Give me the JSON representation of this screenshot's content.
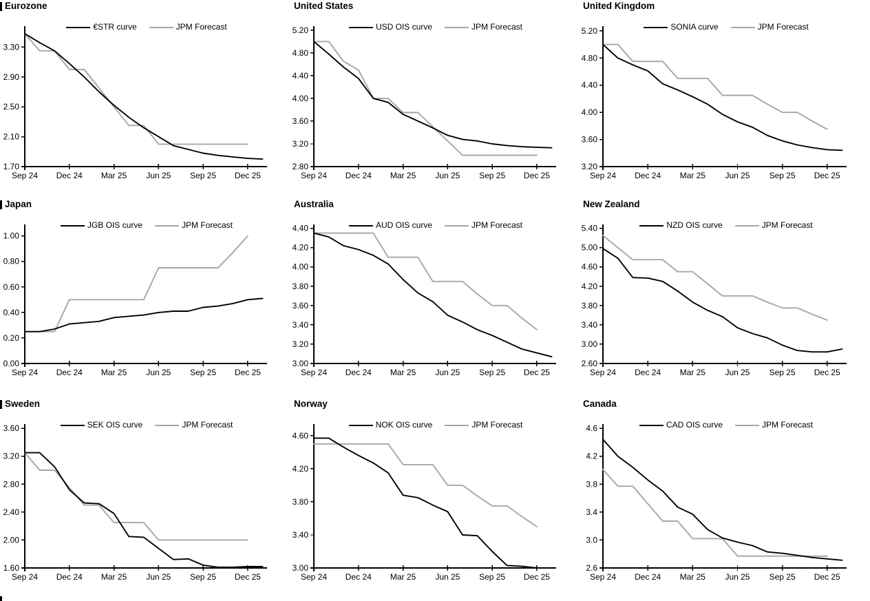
{
  "page": {
    "background": "#ffffff",
    "text_color": "#000000"
  },
  "colors": {
    "line_main": "#000000",
    "line_forecast": "#a6a6a6"
  },
  "section_markers": {
    "color": "#000000",
    "count": 4,
    "description": "short vertical bars at left edge beside row titles and page bottom"
  },
  "x_axis": {
    "tick_labels": [
      "Sep 24",
      "Dec 24",
      "Mar 25",
      "Jun 25",
      "Sep 25",
      "Dec 25"
    ],
    "unit": "monthly points, index 0 = Sep 2024"
  },
  "chart_data": [
    {
      "type": "line",
      "title": "Eurozone",
      "grid": false,
      "legend_position": "top",
      "x_tick_labels": [
        "Sep 24",
        "Dec 24",
        "Mar 25",
        "Jun 25",
        "Sep 25",
        "Dec 25"
      ],
      "x_tick_months": [
        0,
        3,
        6,
        9,
        12,
        15
      ],
      "y_min": 1.7,
      "y_max": 3.58,
      "y_ticks": [
        "3.30",
        "2.90",
        "2.50",
        "2.10",
        "1.70"
      ],
      "series": [
        {
          "name": "€STR curve",
          "color": "#000000",
          "values": [
            3.48,
            3.36,
            3.25,
            3.08,
            2.9,
            2.7,
            2.52,
            2.36,
            2.22,
            2.1,
            1.98,
            1.93,
            1.88,
            1.85,
            1.83,
            1.81,
            1.8
          ]
        },
        {
          "name": "JPM Forecast",
          "color": "#a6a6a6",
          "values": [
            3.48,
            3.25,
            3.25,
            3.0,
            3.0,
            2.75,
            2.5,
            2.25,
            2.25,
            2.0,
            2.0,
            2.0,
            2.0,
            2.0,
            2.0,
            2.0
          ]
        }
      ]
    },
    {
      "type": "line",
      "title": "United States",
      "grid": false,
      "legend_position": "top",
      "x_tick_labels": [
        "Sep 24",
        "Dec 24",
        "Mar 25",
        "Jun 25",
        "Sep 25",
        "Dec 25"
      ],
      "x_tick_months": [
        0,
        3,
        6,
        9,
        12,
        15
      ],
      "y_min": 2.8,
      "y_max": 5.27,
      "y_ticks": [
        "5.20",
        "4.80",
        "4.40",
        "4.00",
        "3.60",
        "3.20",
        "2.80"
      ],
      "series": [
        {
          "name": "USD OIS curve",
          "color": "#000000",
          "values": [
            5.0,
            4.78,
            4.55,
            4.35,
            4.0,
            3.93,
            3.72,
            3.6,
            3.48,
            3.35,
            3.28,
            3.25,
            3.2,
            3.17,
            3.15,
            3.14,
            3.13
          ]
        },
        {
          "name": "JPM Forecast",
          "color": "#a6a6a6",
          "values": [
            5.0,
            5.0,
            4.65,
            4.5,
            4.0,
            4.0,
            3.75,
            3.75,
            3.5,
            3.25,
            3.0,
            3.0,
            3.0,
            3.0,
            3.0,
            3.0
          ]
        }
      ]
    },
    {
      "type": "line",
      "title": "United Kingdom",
      "grid": false,
      "legend_position": "top",
      "x_tick_labels": [
        "Sep 24",
        "Dec 24",
        "Mar 25",
        "Jun 25",
        "Sep 25",
        "Dec 25"
      ],
      "x_tick_months": [
        0,
        3,
        6,
        9,
        12,
        15
      ],
      "y_min": 3.2,
      "y_max": 5.27,
      "y_ticks": [
        "5.20",
        "4.80",
        "4.40",
        "4.00",
        "3.60",
        "3.20"
      ],
      "series": [
        {
          "name": "SONIA curve",
          "color": "#000000",
          "values": [
            5.0,
            4.8,
            4.7,
            4.61,
            4.42,
            4.33,
            4.23,
            4.12,
            3.97,
            3.86,
            3.78,
            3.66,
            3.58,
            3.52,
            3.48,
            3.45,
            3.44
          ]
        },
        {
          "name": "JPM Forecast",
          "color": "#a6a6a6",
          "values": [
            5.0,
            5.0,
            4.75,
            4.75,
            4.75,
            4.5,
            4.5,
            4.5,
            4.25,
            4.25,
            4.25,
            4.12,
            4.0,
            4.0,
            3.87,
            3.75
          ]
        }
      ]
    },
    {
      "type": "line",
      "title": "Japan",
      "grid": false,
      "legend_position": "top",
      "x_tick_labels": [
        "Sep 24",
        "Dec 24",
        "Mar 25",
        "Jun 25",
        "Sep 25",
        "Dec 25"
      ],
      "x_tick_months": [
        0,
        3,
        6,
        9,
        12,
        15
      ],
      "y_min": 0.0,
      "y_max": 1.09,
      "y_ticks": [
        "1.00",
        "0.80",
        "0.60",
        "0.40",
        "0.20",
        "0.00"
      ],
      "series": [
        {
          "name": "JGB OIS curve",
          "color": "#000000",
          "values": [
            0.25,
            0.25,
            0.27,
            0.31,
            0.32,
            0.33,
            0.36,
            0.37,
            0.38,
            0.4,
            0.41,
            0.41,
            0.44,
            0.45,
            0.47,
            0.5,
            0.51
          ]
        },
        {
          "name": "JPM Forecast",
          "color": "#a6a6a6",
          "values": [
            0.25,
            0.25,
            0.25,
            0.5,
            0.5,
            0.5,
            0.5,
            0.5,
            0.5,
            0.75,
            0.75,
            0.75,
            0.75,
            0.75,
            0.87,
            1.0
          ]
        }
      ]
    },
    {
      "type": "line",
      "title": "Australia",
      "grid": false,
      "legend_position": "top",
      "x_tick_labels": [
        "Sep 24",
        "Dec 24",
        "Mar 25",
        "Jun 25",
        "Sep 25",
        "Dec 25"
      ],
      "x_tick_months": [
        0,
        3,
        6,
        9,
        12,
        15
      ],
      "y_min": 3.0,
      "y_max": 4.44,
      "y_ticks": [
        "4.40",
        "4.20",
        "4.00",
        "3.80",
        "3.60",
        "3.40",
        "3.20",
        "3.00"
      ],
      "series": [
        {
          "name": "AUD OIS curve",
          "color": "#000000",
          "values": [
            4.35,
            4.31,
            4.22,
            4.18,
            4.12,
            4.03,
            3.87,
            3.73,
            3.64,
            3.5,
            3.43,
            3.35,
            3.29,
            3.22,
            3.15,
            3.11,
            3.07
          ]
        },
        {
          "name": "JPM Forecast",
          "color": "#a6a6a6",
          "values": [
            4.35,
            4.35,
            4.35,
            4.35,
            4.35,
            4.1,
            4.1,
            4.1,
            3.85,
            3.85,
            3.85,
            3.72,
            3.6,
            3.6,
            3.47,
            3.35
          ]
        }
      ]
    },
    {
      "type": "line",
      "title": "New Zealand",
      "grid": false,
      "legend_position": "top",
      "x_tick_labels": [
        "Sep 24",
        "Dec 24",
        "Mar 25",
        "Jun 25",
        "Sep 25",
        "Dec 25"
      ],
      "x_tick_months": [
        0,
        3,
        6,
        9,
        12,
        15
      ],
      "y_min": 2.6,
      "y_max": 5.48,
      "y_ticks": [
        "5.40",
        "5.00",
        "4.60",
        "4.20",
        "3.80",
        "3.40",
        "3.00",
        "2.60"
      ],
      "series": [
        {
          "name": "NZD OIS curve",
          "color": "#000000",
          "values": [
            4.98,
            4.78,
            4.38,
            4.37,
            4.3,
            4.1,
            3.87,
            3.7,
            3.57,
            3.34,
            3.22,
            3.13,
            2.98,
            2.87,
            2.84,
            2.84,
            2.9
          ]
        },
        {
          "name": "JPM Forecast",
          "color": "#a6a6a6",
          "values": [
            5.25,
            5.0,
            4.75,
            4.75,
            4.75,
            4.5,
            4.5,
            4.25,
            4.0,
            4.0,
            4.0,
            3.87,
            3.75,
            3.75,
            3.62,
            3.5
          ]
        }
      ]
    },
    {
      "type": "line",
      "title": "Sweden",
      "grid": false,
      "legend_position": "top",
      "x_tick_labels": [
        "Sep 24",
        "Dec 24",
        "Mar 25",
        "Jun 25",
        "Sep 25",
        "Dec 25"
      ],
      "x_tick_months": [
        0,
        3,
        6,
        9,
        12,
        15
      ],
      "y_min": 1.6,
      "y_max": 3.66,
      "y_ticks": [
        "3.60",
        "3.20",
        "2.80",
        "2.40",
        "2.00",
        "1.60"
      ],
      "series": [
        {
          "name": "SEK OIS curve",
          "color": "#000000",
          "values": [
            3.25,
            3.25,
            3.05,
            2.72,
            2.53,
            2.52,
            2.38,
            2.05,
            2.04,
            1.88,
            1.72,
            1.73,
            1.64,
            1.61,
            1.61,
            1.62,
            1.62
          ]
        },
        {
          "name": "JPM Forecast",
          "color": "#a6a6a6",
          "values": [
            3.25,
            3.0,
            3.0,
            2.75,
            2.5,
            2.5,
            2.25,
            2.25,
            2.25,
            2.0,
            2.0,
            2.0,
            2.0,
            2.0,
            2.0,
            2.0
          ]
        }
      ]
    },
    {
      "type": "line",
      "title": "Norway",
      "grid": false,
      "legend_position": "top",
      "x_tick_labels": [
        "Sep 24",
        "Dec 24",
        "Mar 25",
        "Jun 25",
        "Sep 25",
        "Dec 25"
      ],
      "x_tick_months": [
        0,
        3,
        6,
        9,
        12,
        15
      ],
      "y_min": 3.0,
      "y_max": 4.74,
      "y_ticks": [
        "4.60",
        "4.20",
        "3.80",
        "3.40",
        "3.00"
      ],
      "series": [
        {
          "name": "NOK OIS curve",
          "color": "#000000",
          "values": [
            4.57,
            4.57,
            4.46,
            4.36,
            4.27,
            4.15,
            3.88,
            3.85,
            3.76,
            3.68,
            3.4,
            3.39,
            3.2,
            3.03,
            3.02,
            3.0,
            3.0
          ]
        },
        {
          "name": "JPM Forecast",
          "color": "#a6a6a6",
          "values": [
            4.5,
            4.5,
            4.5,
            4.5,
            4.5,
            4.5,
            4.25,
            4.25,
            4.25,
            4.0,
            4.0,
            3.87,
            3.75,
            3.75,
            3.62,
            3.5
          ]
        }
      ]
    },
    {
      "type": "line",
      "title": "Canada",
      "grid": false,
      "legend_position": "top",
      "x_tick_labels": [
        "Sep 24",
        "Dec 24",
        "Mar 25",
        "Jun 25",
        "Sep 25",
        "Dec 25"
      ],
      "x_tick_months": [
        0,
        3,
        6,
        9,
        12,
        15
      ],
      "y_min": 2.6,
      "y_max": 4.66,
      "y_ticks": [
        "4.6",
        "4.2",
        "3.8",
        "3.4",
        "3.0",
        "2.6"
      ],
      "series": [
        {
          "name": "CAD OIS curve",
          "color": "#000000",
          "values": [
            4.44,
            4.2,
            4.04,
            3.86,
            3.7,
            3.47,
            3.37,
            3.15,
            3.03,
            2.97,
            2.92,
            2.83,
            2.81,
            2.78,
            2.75,
            2.73,
            2.71
          ]
        },
        {
          "name": "JPM Forecast",
          "color": "#a6a6a6",
          "values": [
            4.01,
            3.77,
            3.77,
            3.52,
            3.27,
            3.27,
            3.02,
            3.02,
            3.02,
            2.77,
            2.77,
            2.77,
            2.77,
            2.77,
            2.77,
            2.77
          ]
        }
      ]
    }
  ]
}
